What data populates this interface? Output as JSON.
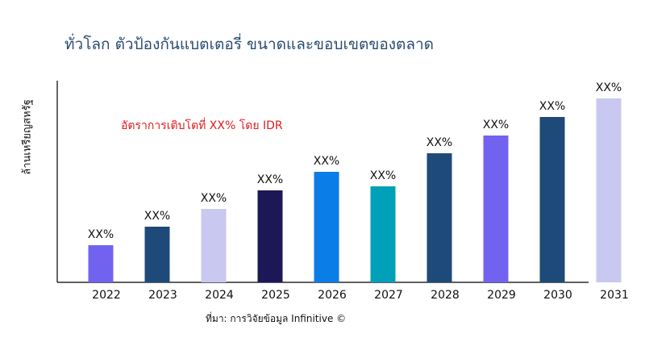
{
  "chart_data": {
    "type": "bar",
    "title": "ทั่วโลก ตัวป้องกันแบตเตอรี่ ขนาดและขอบเขตของตลาด",
    "ylabel": "ล้านเหรียญสหรัฐ",
    "xlabel": "",
    "annotation": "อัตราการเติบโตที่ XX% โดย IDR",
    "source": "ที่มา: การวิจัยข้อมูล Infinitive ©",
    "categories": [
      "2022",
      "2023",
      "2024",
      "2025",
      "2026",
      "2027",
      "2028",
      "2029",
      "2030",
      "2031"
    ],
    "values": [
      46,
      69,
      91,
      114,
      137,
      119,
      160,
      182,
      205,
      228
    ],
    "data_labels": [
      "XX%",
      "XX%",
      "XX%",
      "XX%",
      "XX%",
      "XX%",
      "XX%",
      "XX%",
      "XX%",
      "XX%"
    ],
    "colors": [
      "#7163f0",
      "#1e4a7a",
      "#c8c8f0",
      "#1c1756",
      "#0b7de6",
      "#00a0b8",
      "#1e4a7a",
      "#7163f0",
      "#1e4a7a",
      "#c8c8f0"
    ],
    "ylim": [
      0,
      250
    ],
    "grid": false,
    "y_ticks_shown": false
  }
}
